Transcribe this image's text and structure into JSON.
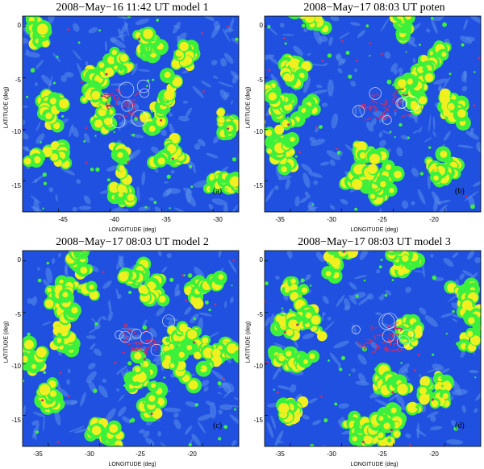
{
  "chart_data": [
    {
      "type": "heatmap",
      "title": "2008−May−16  11:42 UT  model 1",
      "xlabel": "LONGITUDE (deg)",
      "ylabel": "LATITUDE (deg)",
      "xticks": [
        "-45",
        "-40",
        "-35",
        "-30"
      ],
      "xlim": [
        -48.5,
        -27.5
      ],
      "yticks": [
        "0",
        "-5",
        "-10",
        "-15"
      ],
      "ylim": [
        -18,
        1
      ],
      "panel_label": "(a)",
      "colors": [
        "#2050e0",
        "#5a8ee8",
        "#3cf03c",
        "#f0f020",
        "#c03070"
      ]
    },
    {
      "type": "heatmap",
      "title": "2008−May−17  08:03 UT  poten",
      "xlabel": "LONGITUDE (deg)",
      "ylabel": "LATITUDE (deg)",
      "xticks": [
        "-35",
        "-30",
        "-25",
        "-20"
      ],
      "xlim": [
        -37.5,
        -16.5
      ],
      "yticks": [
        "0",
        "-5",
        "-10",
        "-15"
      ],
      "ylim": [
        -18,
        1
      ],
      "panel_label": "(b)",
      "colors": [
        "#2050e0",
        "#5a8ee8",
        "#3cf03c",
        "#f0f020",
        "#c03070"
      ]
    },
    {
      "type": "heatmap",
      "title": "2008−May−17  08:03 UT model 2",
      "xlabel": "LONGITUDE (deg)",
      "ylabel": "LATITUDE (deg)",
      "xticks": [
        "-35",
        "-30",
        "-25",
        "-20"
      ],
      "xlim": [
        -37.5,
        -16.5
      ],
      "yticks": [
        "0",
        "-5",
        "-10",
        "-15"
      ],
      "ylim": [
        -18,
        1
      ],
      "panel_label": "(c)",
      "colors": [
        "#2050e0",
        "#5a8ee8",
        "#3cf03c",
        "#f0f020",
        "#c03070"
      ]
    },
    {
      "type": "heatmap",
      "title": "2008−May−17  08:03 UT model 3",
      "xlabel": "LONGITUDE (deg)",
      "ylabel": "LATITUDE (deg)",
      "xticks": [
        "-35",
        "-30",
        "-25",
        "-20"
      ],
      "xlim": [
        -37.5,
        -16.5
      ],
      "yticks": [
        "0",
        "-5",
        "-10",
        "-15"
      ],
      "ylim": [
        -18,
        1
      ],
      "panel_label": "(d)",
      "colors": [
        "#2050e0",
        "#5a8ee8",
        "#3cf03c",
        "#f0f020",
        "#c03070"
      ]
    }
  ]
}
